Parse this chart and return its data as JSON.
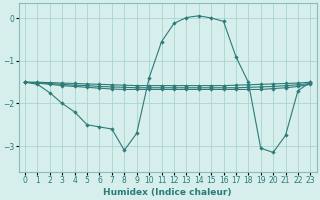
{
  "xlabel": "Humidex (Indice chaleur)",
  "background_color": "#d6eeec",
  "grid_color": "#aad4d0",
  "line_color": "#2d7b78",
  "spine_color": "#8bbcb9",
  "xlim": [
    -0.5,
    23.5
  ],
  "ylim": [
    -3.6,
    0.35
  ],
  "yticks": [
    0,
    -1,
    -2,
    -3
  ],
  "xticks": [
    0,
    1,
    2,
    3,
    4,
    5,
    6,
    7,
    8,
    9,
    10,
    11,
    12,
    13,
    14,
    15,
    16,
    17,
    18,
    19,
    20,
    21,
    22,
    23
  ],
  "curve1_x": [
    0,
    1,
    2,
    3,
    4,
    5,
    6,
    7,
    8,
    9,
    10,
    11,
    12,
    13,
    14,
    15,
    16,
    17,
    18,
    19,
    20,
    21,
    22,
    23
  ],
  "curve1_y": [
    -1.5,
    -1.55,
    -1.75,
    -2.0,
    -2.2,
    -2.5,
    -2.55,
    -2.6,
    -3.1,
    -2.7,
    -1.4,
    -0.55,
    -0.12,
    0.02,
    0.06,
    0.01,
    -0.07,
    -0.9,
    -1.5,
    -3.05,
    -3.15,
    -2.75,
    -1.7,
    -1.5
  ],
  "curve2_x": [
    0,
    1,
    2,
    3,
    4,
    5,
    6,
    7,
    8,
    9,
    10,
    11,
    12,
    13,
    14,
    15,
    16,
    17,
    18,
    19,
    20,
    21,
    22,
    23
  ],
  "curve2_y": [
    -1.5,
    -1.52,
    -1.55,
    -1.58,
    -1.6,
    -1.62,
    -1.64,
    -1.66,
    -1.67,
    -1.67,
    -1.67,
    -1.67,
    -1.67,
    -1.67,
    -1.67,
    -1.67,
    -1.67,
    -1.67,
    -1.67,
    -1.67,
    -1.65,
    -1.63,
    -1.6,
    -1.55
  ],
  "curve3_x": [
    0,
    1,
    2,
    3,
    4,
    5,
    6,
    7,
    8,
    9,
    10,
    11,
    12,
    13,
    14,
    15,
    16,
    17,
    18,
    19,
    20,
    21,
    22,
    23
  ],
  "curve3_y": [
    -1.5,
    -1.51,
    -1.53,
    -1.55,
    -1.57,
    -1.58,
    -1.6,
    -1.61,
    -1.62,
    -1.63,
    -1.63,
    -1.63,
    -1.63,
    -1.63,
    -1.63,
    -1.63,
    -1.63,
    -1.63,
    -1.62,
    -1.61,
    -1.6,
    -1.58,
    -1.56,
    -1.53
  ],
  "curve4_x": [
    0,
    1,
    2,
    3,
    4,
    5,
    6,
    7,
    8,
    9,
    10,
    11,
    12,
    13,
    14,
    15,
    16,
    17,
    18,
    19,
    20,
    21,
    22,
    23
  ],
  "curve4_y": [
    -1.5,
    -1.5,
    -1.51,
    -1.52,
    -1.53,
    -1.54,
    -1.55,
    -1.56,
    -1.57,
    -1.58,
    -1.58,
    -1.58,
    -1.58,
    -1.58,
    -1.58,
    -1.58,
    -1.58,
    -1.57,
    -1.56,
    -1.55,
    -1.54,
    -1.53,
    -1.52,
    -1.5
  ]
}
